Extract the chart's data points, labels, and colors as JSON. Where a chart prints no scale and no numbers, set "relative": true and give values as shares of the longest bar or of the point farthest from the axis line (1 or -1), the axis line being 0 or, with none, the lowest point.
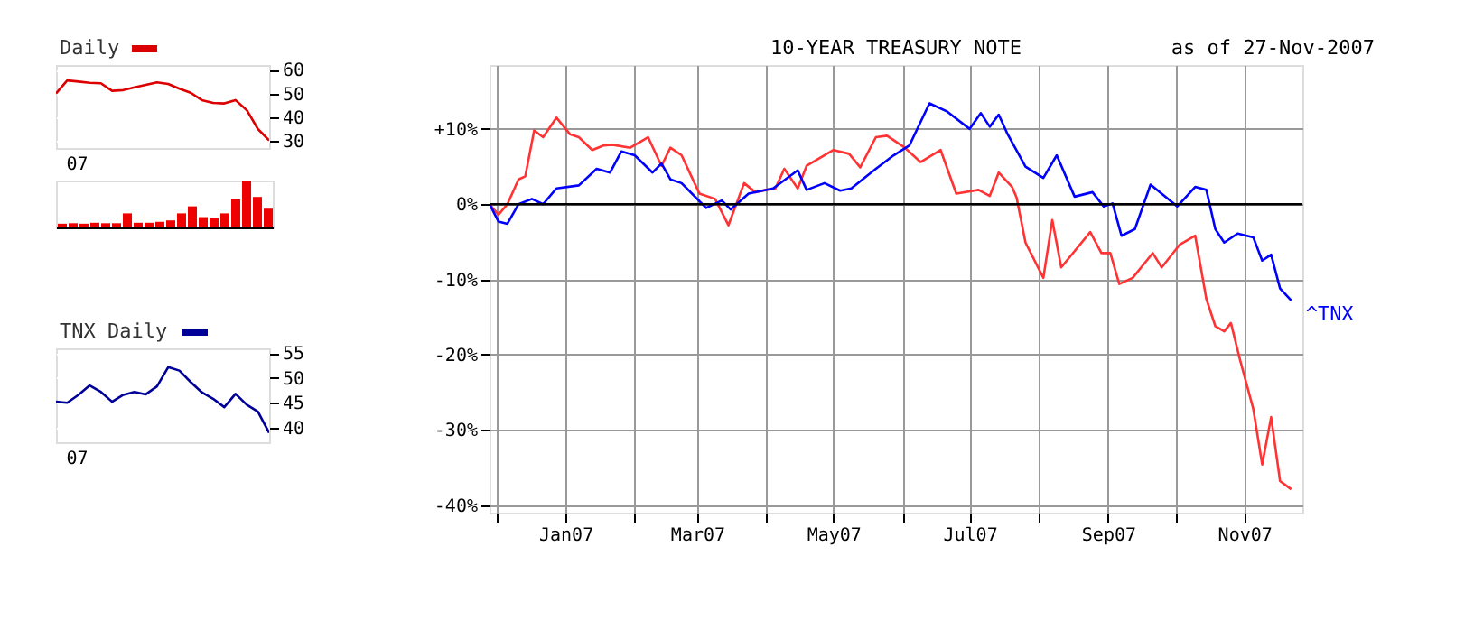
{
  "chart_data": [
    {
      "type": "line",
      "annotations": [
        "07"
      ],
      "categories": [
        null,
        null,
        null,
        null,
        null,
        null,
        null,
        null,
        null,
        null,
        null,
        null,
        null,
        null,
        null,
        null,
        null,
        null,
        null,
        null
      ],
      "ylim": [
        27,
        62
      ],
      "yticks": [
        30,
        40,
        50,
        60
      ],
      "grid": true,
      "legend": "top left",
      "series": [
        {
          "name": "Daily",
          "color": "#dd0000",
          "values": [
            50,
            55.5,
            55,
            54.5,
            54.3,
            51.1,
            51.4,
            52.6,
            53.6,
            54.7,
            54,
            52,
            50.3,
            47.2,
            46,
            45.8,
            47.2,
            43,
            35,
            30.2
          ]
        }
      ]
    },
    {
      "type": "bar",
      "relative": true,
      "color": "#ee0000",
      "categories": [
        null,
        null,
        null,
        null,
        null,
        null,
        null,
        null,
        null,
        null,
        null,
        null,
        null,
        null,
        null,
        null,
        null,
        null,
        null,
        null
      ],
      "values": [
        0.08,
        0.09,
        0.08,
        0.1,
        0.09,
        0.09,
        0.3,
        0.1,
        0.1,
        0.12,
        0.15,
        0.3,
        0.45,
        0.22,
        0.2,
        0.3,
        0.6,
        1,
        0.65,
        0.4
      ]
    },
    {
      "type": "line",
      "annotations": [
        "07"
      ],
      "categories": [
        null,
        null,
        null,
        null,
        null,
        null,
        null,
        null,
        null,
        null,
        null,
        null,
        null,
        null,
        null,
        null,
        null,
        null,
        null,
        null
      ],
      "ylim": [
        37,
        56
      ],
      "yticks": [
        40,
        45,
        50,
        55
      ],
      "grid": true,
      "legend": "top left",
      "series": [
        {
          "name": "TNX Daily",
          "color": "#000099",
          "values": [
            45.2,
            45,
            46.6,
            48.5,
            47.2,
            45.2,
            46.6,
            47.2,
            46.7,
            48.3,
            52.2,
            51.5,
            49.2,
            47.1,
            45.8,
            44.1,
            46.8,
            44.6,
            43.2,
            38.9
          ]
        }
      ]
    },
    {
      "type": "line",
      "title": "10-YEAR TREASURY NOTE",
      "subtitle": "as of 27-Nov-2007",
      "xlim": [
        "2006-11-28",
        "2007-11-27"
      ],
      "xticks": [
        {
          "value": "2006-12-01",
          "label": null
        },
        {
          "value": "2007-01-01",
          "label": "Jan07"
        },
        {
          "value": "2007-02-01",
          "label": null
        },
        {
          "value": "2007-03-01",
          "label": "Mar07"
        },
        {
          "value": "2007-04-01",
          "label": null
        },
        {
          "value": "2007-05-01",
          "label": "May07"
        },
        {
          "value": "2007-06-01",
          "label": null
        },
        {
          "value": "2007-07-01",
          "label": "Jul07"
        },
        {
          "value": "2007-08-01",
          "label": null
        },
        {
          "value": "2007-09-01",
          "label": "Sep07"
        },
        {
          "value": "2007-10-01",
          "label": null
        },
        {
          "value": "2007-11-01",
          "label": "Nov07"
        }
      ],
      "ylim": [
        -41,
        18.5
      ],
      "yticks": [
        {
          "value": 10,
          "label": "+10%"
        },
        {
          "value": 0,
          "label": "0%"
        },
        {
          "value": -10,
          "label": "-10%"
        },
        {
          "value": -20,
          "label": "-20%"
        },
        {
          "value": -30,
          "label": "-30%"
        },
        {
          "value": -40,
          "label": "-40%"
        }
      ],
      "grid": true,
      "ref_lines": [
        {
          "axis": "y",
          "value": 0,
          "color": "#000000"
        }
      ],
      "series": [
        {
          "color": "#ff3333",
          "x": [
            "2006-11-28",
            "2006-12-02",
            "2006-12-06",
            "2006-12-11",
            "2006-12-14",
            "2006-12-18",
            "2006-12-22",
            "2006-12-28",
            "2007-01-03",
            "2007-01-07",
            "2007-01-13",
            "2007-01-18",
            "2007-01-22",
            "2007-01-30",
            "2007-02-07",
            "2007-02-13",
            "2007-02-17",
            "2007-02-22",
            "2007-03-02",
            "2007-03-09",
            "2007-03-15",
            "2007-03-22",
            "2007-03-27",
            "2007-04-01",
            "2007-04-05",
            "2007-04-09",
            "2007-04-15",
            "2007-04-19",
            "2007-05-01",
            "2007-05-08",
            "2007-05-13",
            "2007-05-20",
            "2007-05-25",
            "2007-06-02",
            "2007-06-09",
            "2007-06-18",
            "2007-06-25",
            "2007-07-05",
            "2007-07-10",
            "2007-07-14",
            "2007-07-20",
            "2007-07-22",
            "2007-07-26",
            "2007-08-03",
            "2007-08-07",
            "2007-08-11",
            "2007-08-24",
            "2007-08-29",
            "2007-09-02",
            "2007-09-06",
            "2007-09-12",
            "2007-09-21",
            "2007-09-25",
            "2007-10-03",
            "2007-10-10",
            "2007-10-15",
            "2007-10-19",
            "2007-10-23",
            "2007-10-26",
            "2007-10-30",
            "2007-11-05",
            "2007-11-09",
            "2007-11-13",
            "2007-11-17",
            "2007-11-22"
          ],
          "values": [
            0,
            -1.4,
            0,
            3.3,
            3.7,
            9.8,
            8.9,
            11.5,
            9.3,
            8.9,
            7.2,
            7.8,
            7.9,
            7.5,
            8.9,
            5.1,
            7.5,
            6.5,
            1.4,
            0.7,
            -2.8,
            2.8,
            1.6,
            1.9,
            2.1,
            4.7,
            2.1,
            5.1,
            7.2,
            6.7,
            4.9,
            8.9,
            9.1,
            7.5,
            5.6,
            7.2,
            1.4,
            1.9,
            1.1,
            4.2,
            2.3,
            0.9,
            -5.1,
            -9.8,
            -2.1,
            -8.4,
            -3.7,
            -6.5,
            -6.5,
            -10.6,
            -9.8,
            -6.5,
            -8.4,
            -5.4,
            -4.2,
            -12.6,
            -16.2,
            -16.9,
            -15.8,
            -20.6,
            -27.2,
            -34.6,
            -28.3,
            -36.8,
            -37.9
          ]
        },
        {
          "name": "^TNX",
          "color": "#0000ff",
          "x": [
            "2006-11-28",
            "2006-12-02",
            "2006-12-06",
            "2006-12-11",
            "2006-12-17",
            "2006-12-22",
            "2006-12-28",
            "2007-01-07",
            "2007-01-15",
            "2007-01-21",
            "2007-01-26",
            "2007-02-01",
            "2007-02-09",
            "2007-02-13",
            "2007-02-17",
            "2007-02-22",
            "2007-03-05",
            "2007-03-12",
            "2007-03-16",
            "2007-03-24",
            "2007-04-04",
            "2007-04-15",
            "2007-04-19",
            "2007-04-27",
            "2007-05-04",
            "2007-05-09",
            "2007-05-20",
            "2007-05-28",
            "2007-06-04",
            "2007-06-13",
            "2007-06-21",
            "2007-07-01",
            "2007-07-06",
            "2007-07-10",
            "2007-07-14",
            "2007-07-18",
            "2007-07-26",
            "2007-08-03",
            "2007-08-09",
            "2007-08-17",
            "2007-08-25",
            "2007-08-30",
            "2007-09-03",
            "2007-09-07",
            "2007-09-13",
            "2007-09-20",
            "2007-10-02",
            "2007-10-10",
            "2007-10-15",
            "2007-10-19",
            "2007-10-23",
            "2007-10-29",
            "2007-11-05",
            "2007-11-09",
            "2007-11-13",
            "2007-11-17",
            "2007-11-22"
          ],
          "values": [
            0,
            -2.3,
            -2.6,
            0,
            0.7,
            0,
            2.1,
            2.5,
            4.7,
            4.2,
            7,
            6.5,
            4.2,
            5.4,
            3.3,
            2.8,
            -0.5,
            0.5,
            -0.7,
            1.4,
            2.1,
            4.5,
            1.9,
            2.8,
            1.8,
            2.1,
            4.7,
            6.5,
            7.8,
            13.4,
            12.3,
            10,
            12.1,
            10.3,
            11.9,
            9.3,
            5,
            3.5,
            6.5,
            1,
            1.6,
            -0.3,
            0.1,
            -4.2,
            -3.3,
            2.6,
            -0.3,
            2.3,
            1.9,
            -3.3,
            -5.1,
            -3.9,
            -4.4,
            -7.5,
            -6.7,
            -11.2,
            -12.8
          ]
        }
      ]
    }
  ]
}
